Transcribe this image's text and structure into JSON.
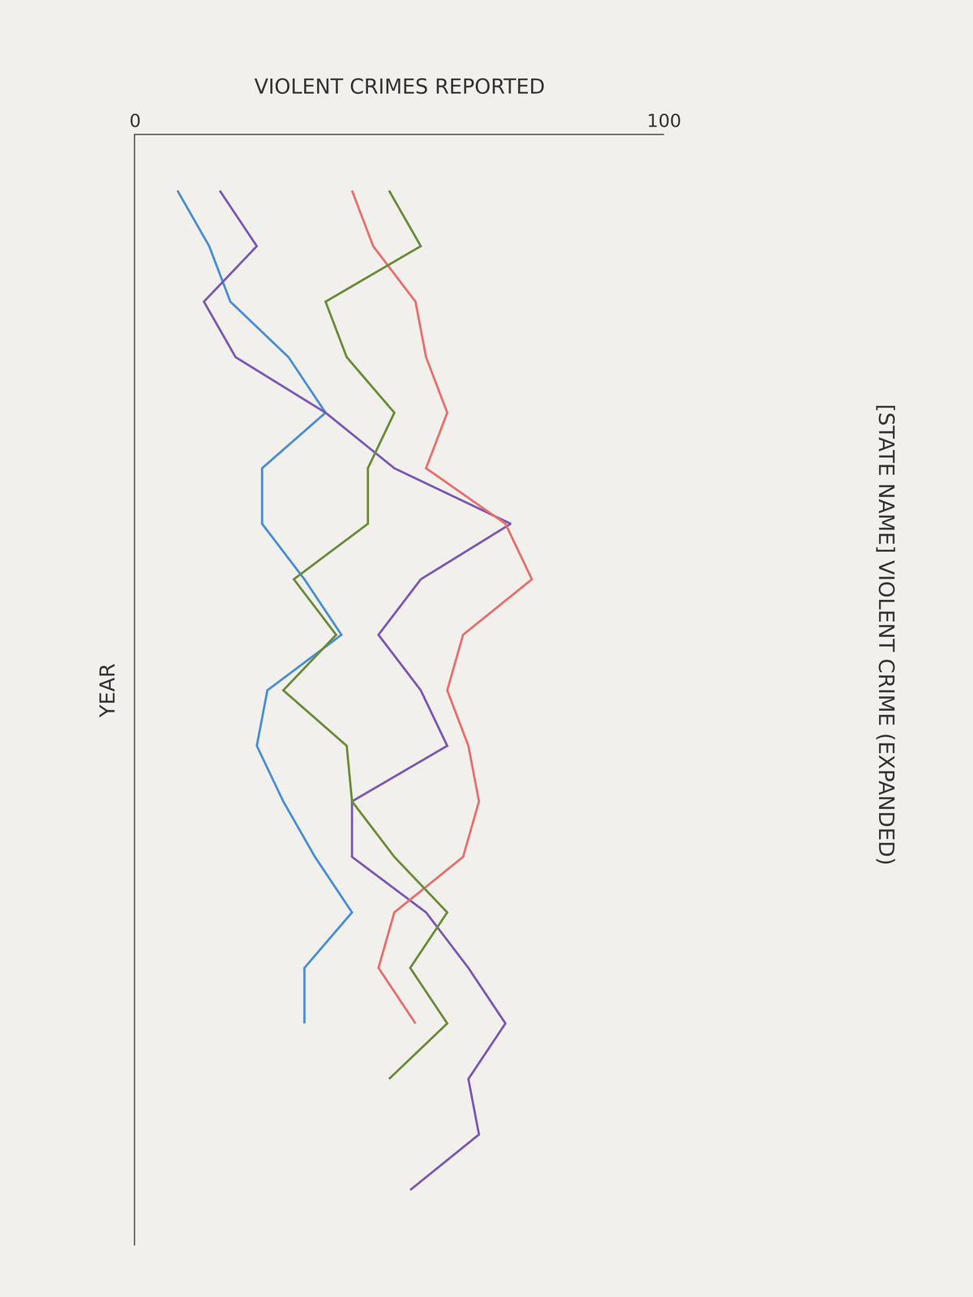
{
  "chart_data": {
    "type": "line",
    "title": "[STATE NAME] VIOLENT CRIME (EXPANDED)",
    "x_label": "VIOLENT CRIMES REPORTED",
    "y_label": "YEAR",
    "orientation": "horizontal",
    "categories": [
      null,
      null,
      null,
      null,
      null,
      null,
      null,
      null,
      null,
      null,
      null,
      null,
      null,
      null,
      null,
      null,
      null,
      null,
      null
    ],
    "series": [
      {
        "color": "#4a8fd4",
        "values": [
          8,
          14,
          18,
          29,
          36,
          24,
          24,
          32,
          39,
          25,
          23,
          28,
          34,
          41,
          32,
          32,
          null,
          null,
          null
        ]
      },
      {
        "color": "#7b59b5",
        "values": [
          16,
          23,
          13,
          19,
          36,
          49,
          71,
          54,
          46,
          54,
          59,
          41,
          41,
          55,
          63,
          70,
          63,
          65,
          52
        ]
      },
      {
        "color": "#e8706e",
        "values": [
          41,
          45,
          53,
          55,
          59,
          55,
          70,
          75,
          62,
          59,
          63,
          65,
          62,
          49,
          46,
          53,
          null,
          null,
          null
        ]
      },
      {
        "color": "#6b8c3a",
        "values": [
          48,
          54,
          36,
          40,
          49,
          44,
          44,
          30,
          38,
          28,
          40,
          41,
          49,
          59,
          52,
          59,
          48,
          null,
          null
        ]
      }
    ],
    "xlim": [
      0,
      100
    ],
    "xticks": [
      0,
      100
    ],
    "grid": false,
    "tick_labels": "x"
  }
}
